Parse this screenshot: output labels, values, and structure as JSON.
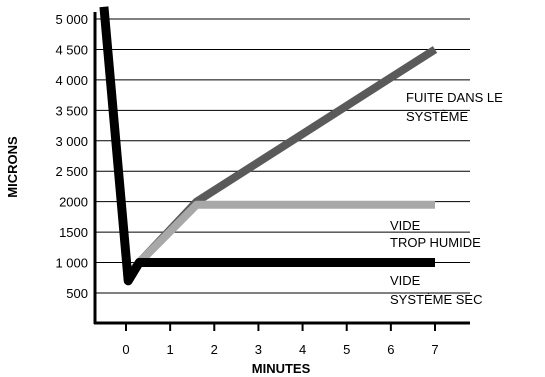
{
  "chart_data": {
    "type": "line",
    "title": "",
    "xlabel": "MINUTES",
    "ylabel": "MICRONS",
    "x_ticks": [
      "0",
      "1",
      "2",
      "3",
      "4",
      "5",
      "6",
      "7"
    ],
    "y_ticks": [
      {
        "label": "5 000",
        "value": 5000
      },
      {
        "label": "4 500",
        "value": 4500
      },
      {
        "label": "4 000",
        "value": 4000
      },
      {
        "label": "3 500",
        "value": 3500
      },
      {
        "label": "3 000",
        "value": 3000
      },
      {
        "label": "2 500",
        "value": 2500
      },
      {
        "label": "2000",
        "value": 2000
      },
      {
        "label": "1500",
        "value": 1500
      },
      {
        "label": "1 000",
        "value": 1000
      },
      {
        "label": "500",
        "value": 500
      }
    ],
    "xlim": [
      -0.7,
      7.7
    ],
    "ylim": [
      0,
      5100
    ],
    "grid": "horizontal",
    "series": [
      {
        "key": "leak",
        "color": "#5a5a5a",
        "x": [
          0,
          0.3,
          1.6,
          7
        ],
        "y": [
          750,
          1000,
          2000,
          4500
        ]
      },
      {
        "key": "wet",
        "color": "#a8a8a8",
        "x": [
          0,
          0.3,
          1.6,
          7
        ],
        "y": [
          750,
          1000,
          1950,
          1950
        ]
      },
      {
        "key": "dry",
        "color": "#000000",
        "x": [
          -0.5,
          0.05,
          0.3,
          7
        ],
        "y": [
          5200,
          700,
          1000,
          1000
        ]
      }
    ],
    "annotations": {
      "leak": [
        "FUITE DANS LE",
        "SYSTÈME"
      ],
      "wet": [
        "VIDE",
        "TROP HUMIDE"
      ],
      "dry": [
        "VIDE",
        "SYSTÈME SEC"
      ]
    }
  }
}
